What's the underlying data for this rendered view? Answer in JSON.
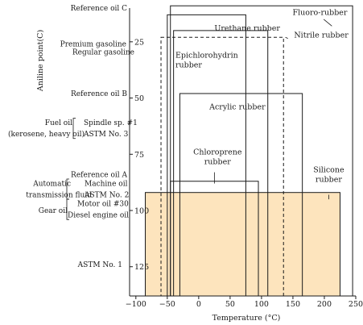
{
  "chart_data": {
    "type": "range-boxes",
    "title": "",
    "xlabel": "Temperature (°C)",
    "ylabel": "Aniline point(C)",
    "xlim": [
      -110,
      250
    ],
    "ylim": [
      138,
      10
    ],
    "y_inverted": true,
    "x_ticks": [
      -100,
      -50,
      0,
      50,
      100,
      150,
      200,
      250
    ],
    "y_ticks": [
      25,
      50,
      75,
      100,
      125
    ],
    "oil_reference_labels": [
      {
        "lines": [
          "Reference oil C"
        ],
        "y": 10
      },
      {
        "lines": [
          "Premium gasoline"
        ],
        "y": 26
      },
      {
        "lines": [
          "Regular gasoline"
        ],
        "y": 29.5
      },
      {
        "lines": [
          "Reference oil B"
        ],
        "y": 48
      },
      {
        "lines": [
          "Fuel oil"
        ],
        "y": 61
      },
      {
        "lines": [
          "(kerosene, heavy oil)"
        ],
        "y": 66
      },
      {
        "lines": [
          "Spindle sp. #1"
        ],
        "y": 61
      },
      {
        "lines": [
          "ASTM No. 3"
        ],
        "y": 66
      },
      {
        "lines": [
          "Reference oil A"
        ],
        "y": 84
      },
      {
        "lines": [
          "Automatic"
        ],
        "y": 88
      },
      {
        "lines": [
          "transmission fluid"
        ],
        "y": 93
      },
      {
        "lines": [
          "Machine oil"
        ],
        "y": 88
      },
      {
        "lines": [
          "ASTM No. 2"
        ],
        "y": 93
      },
      {
        "lines": [
          "Motor oil #30"
        ],
        "y": 97
      },
      {
        "lines": [
          "Gear oil"
        ],
        "y": 100
      },
      {
        "lines": [
          "Diesel engine oil"
        ],
        "y": 102
      },
      {
        "lines": [
          "ASTM No. 1"
        ],
        "y": 124
      }
    ],
    "brackets": [
      {
        "x": -128,
        "y_top": 59,
        "y_bot": 68
      },
      {
        "x": -82,
        "y_top": 86,
        "y_bot": 95
      },
      {
        "x": -82,
        "y_top": 95,
        "y_bot": 104
      }
    ],
    "series": [
      {
        "name": "Fluoro-rubber",
        "x_range": [
          -45,
          245
        ],
        "y_range": [
          9,
          138
        ],
        "style": "solid"
      },
      {
        "name": "Urethane rubber",
        "x_range": [
          -50,
          75
        ],
        "y_range": [
          13,
          138
        ],
        "style": "solid"
      },
      {
        "name": "Nitrile rubber",
        "x_range": [
          -40,
          110
        ],
        "y_range": [
          20,
          138
        ],
        "style": "solid"
      },
      {
        "name": "Epichlorohydrin rubber",
        "x_range": [
          -60,
          135
        ],
        "y_range": [
          23,
          138
        ],
        "style": "dashed"
      },
      {
        "name": "Acrylic rubber",
        "x_range": [
          -30,
          165
        ],
        "y_range": [
          48,
          138
        ],
        "style": "solid"
      },
      {
        "name": "Chloroprene rubber",
        "x_range": [
          -45,
          95
        ],
        "y_range": [
          87,
          138
        ],
        "style": "solid"
      },
      {
        "name": "Silicone rubber",
        "x_range": [
          -85,
          225
        ],
        "y_range": [
          92,
          138
        ],
        "style": "filled",
        "fill": "#fde4bd"
      }
    ],
    "rubber_labels": [
      {
        "series": "Fluoro-rubber",
        "lines": [
          "Fluoro-rubber"
        ],
        "at": [
          193,
          13
        ]
      },
      {
        "series": "Urethane rubber",
        "lines": [
          "Urethane rubber"
        ],
        "at": [
          25,
          20
        ]
      },
      {
        "series": "Nitrile rubber",
        "lines": [
          "Nitrile rubber"
        ],
        "at": [
          195,
          23
        ]
      },
      {
        "series": "Epichlorohydrin rubber",
        "lines": [
          "Epichlorohydrin",
          "rubber"
        ],
        "at": [
          -37,
          32
        ]
      },
      {
        "series": "Acrylic rubber",
        "lines": [
          "Acrylic rubber"
        ],
        "at": [
          17,
          55
        ]
      },
      {
        "series": "Chloroprene rubber",
        "lines": [
          "Chloroprene",
          "rubber"
        ],
        "at": [
          30,
          75
        ]
      },
      {
        "series": "Silicone rubber",
        "lines": [
          "Silicone",
          "rubber"
        ],
        "at": [
          207,
          83
        ]
      }
    ],
    "leader_lines": [
      {
        "series": "Fluoro-rubber",
        "from": [
          199,
          15
        ],
        "to": [
          212,
          18
        ]
      },
      {
        "series": "Nitrile rubber",
        "from": [
          142,
          23.5
        ],
        "to": [
          138,
          23
        ]
      },
      {
        "series": "Silicone rubber",
        "from": [
          207,
          93
        ],
        "to": [
          207,
          95
        ]
      },
      {
        "series": "Chloroprene rubber",
        "from": [
          25,
          83
        ],
        "to": [
          25,
          88
        ]
      }
    ]
  }
}
